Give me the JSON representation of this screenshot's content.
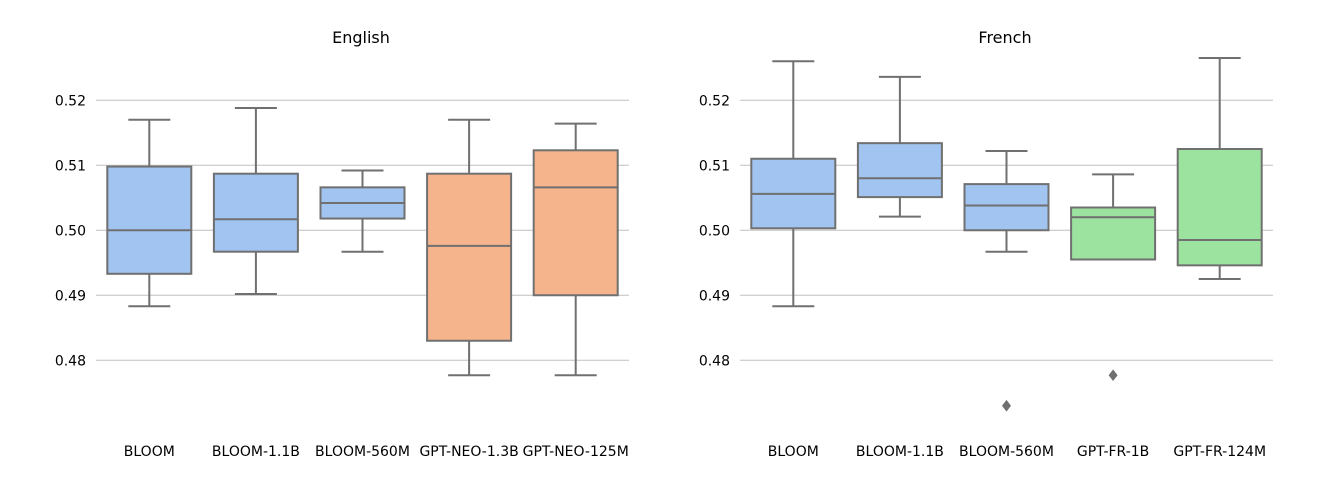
{
  "chart_data": [
    {
      "type": "box",
      "title": "English",
      "xlabel": "",
      "ylabel": "",
      "ylim": [
        0.4705,
        0.5285
      ],
      "yticks": [
        0.48,
        0.49,
        0.5,
        0.51,
        0.52
      ],
      "ytick_labels": [
        "0.48",
        "0.49",
        "0.50",
        "0.51",
        "0.52"
      ],
      "grid": "horizontal",
      "colors": {
        "BLOOM family": "#a1c4f0",
        "GPT-NEO family": "#f5b48c",
        "edge": "#707070",
        "grid": "#c0c0c0"
      },
      "categories": [
        "BLOOM",
        "BLOOM-1.1B",
        "BLOOM-560M",
        "GPT-NEO-1.3B",
        "GPT-NEO-125M"
      ],
      "boxes": [
        {
          "category": "BLOOM",
          "whislo": 0.4883,
          "q1": 0.4933,
          "med": 0.5,
          "q3": 0.5098,
          "whishi": 0.517,
          "color": "#a1c4f0",
          "fliers": []
        },
        {
          "category": "BLOOM-1.1B",
          "whislo": 0.4902,
          "q1": 0.4967,
          "med": 0.5017,
          "q3": 0.5087,
          "whishi": 0.5188,
          "color": "#a1c4f0",
          "fliers": []
        },
        {
          "category": "BLOOM-560M",
          "whislo": 0.4967,
          "q1": 0.5018,
          "med": 0.5042,
          "q3": 0.5066,
          "whishi": 0.5092,
          "color": "#a1c4f0",
          "fliers": []
        },
        {
          "category": "GPT-NEO-1.3B",
          "whislo": 0.4777,
          "q1": 0.483,
          "med": 0.4976,
          "q3": 0.5087,
          "whishi": 0.517,
          "color": "#f5b48c",
          "fliers": []
        },
        {
          "category": "GPT-NEO-125M",
          "whislo": 0.4777,
          "q1": 0.49,
          "med": 0.5066,
          "q3": 0.5123,
          "whishi": 0.5164,
          "color": "#f5b48c",
          "fliers": []
        }
      ]
    },
    {
      "type": "box",
      "title": "French",
      "xlabel": "",
      "ylabel": "",
      "ylim": [
        0.4705,
        0.5285
      ],
      "yticks": [
        0.48,
        0.49,
        0.5,
        0.51,
        0.52
      ],
      "ytick_labels": [
        "0.48",
        "0.49",
        "0.50",
        "0.51",
        "0.52"
      ],
      "grid": "horizontal",
      "colors": {
        "BLOOM family": "#a1c4f0",
        "GPT-FR family": "#9de3a0",
        "edge": "#707070",
        "grid": "#c0c0c0"
      },
      "categories": [
        "BLOOM",
        "BLOOM-1.1B",
        "BLOOM-560M",
        "GPT-FR-1B",
        "GPT-FR-124M"
      ],
      "boxes": [
        {
          "category": "BLOOM",
          "whislo": 0.4883,
          "q1": 0.5003,
          "med": 0.5056,
          "q3": 0.511,
          "whishi": 0.526,
          "color": "#a1c4f0",
          "fliers": []
        },
        {
          "category": "BLOOM-1.1B",
          "whislo": 0.5021,
          "q1": 0.5051,
          "med": 0.508,
          "q3": 0.5134,
          "whishi": 0.5236,
          "color": "#a1c4f0",
          "fliers": []
        },
        {
          "category": "BLOOM-560M",
          "whislo": 0.4967,
          "q1": 0.5,
          "med": 0.5038,
          "q3": 0.5071,
          "whishi": 0.5122,
          "color": "#a1c4f0",
          "fliers": [
            0.473
          ]
        },
        {
          "category": "GPT-FR-1B",
          "whislo": 0.4955,
          "q1": 0.4955,
          "med": 0.502,
          "q3": 0.5035,
          "whishi": 0.5086,
          "color": "#9de3a0",
          "fliers": [
            0.4777
          ]
        },
        {
          "category": "GPT-FR-124M",
          "whislo": 0.4925,
          "q1": 0.4946,
          "med": 0.4985,
          "q3": 0.5125,
          "whishi": 0.5265,
          "color": "#9de3a0",
          "fliers": []
        }
      ]
    }
  ]
}
